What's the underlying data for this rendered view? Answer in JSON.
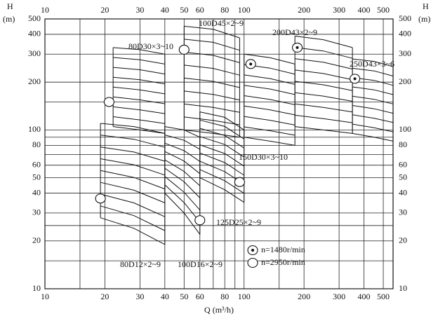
{
  "chart_data": {
    "type": "pump-chart",
    "ylabel": "H",
    "yunit": "(m)",
    "xlabel": "Q (m³/h)",
    "xscale": "log",
    "yscale": "log",
    "xlim": [
      10,
      560
    ],
    "ylim": [
      10,
      500
    ],
    "xticks": [
      10,
      20,
      30,
      40,
      50,
      60,
      80,
      100,
      200,
      300,
      400,
      500
    ],
    "yticks": [
      10,
      20,
      30,
      40,
      50,
      60,
      80,
      100,
      200,
      300,
      400,
      500
    ],
    "xminor": [
      15,
      70,
      90,
      150
    ],
    "yminor": [
      15,
      25,
      70,
      90,
      150
    ],
    "grid": true,
    "series": [
      {
        "name": "n=1480r/min",
        "marker": "dot-circle",
        "families": [
          {
            "label": "200D43×2~9",
            "x": [
              180,
              250,
              350
            ],
            "top": [
              390,
              370,
              330
            ],
            "bottom": [
              105,
              100,
              95
            ],
            "marker": [
              185,
              330
            ]
          },
          {
            "label": "250D43×3~6",
            "x": [
              350,
              450,
              560
            ],
            "top": [
              280,
              270,
              250
            ],
            "bottom": [
              95,
              90,
              85
            ],
            "marker": [
              360,
              210
            ]
          },
          {
            "label": "150D30×3~10",
            "x": [
              100,
              135,
              180
            ],
            "top": [
              300,
              285,
              260
            ],
            "bottom": [
              90,
              85,
              80
            ],
            "marker": [
              108,
              260
            ]
          }
        ]
      },
      {
        "name": "n=2950r/min",
        "marker": "circle",
        "families": [
          {
            "label": "80D30×3~10",
            "x": [
              22,
              30,
              40
            ],
            "top": [
              330,
              320,
              300
            ],
            "bottom": [
              105,
              100,
              95
            ],
            "marker": [
              21,
              150
            ]
          },
          {
            "label": "100D45×2~9",
            "x": [
              50,
              70,
              95
            ],
            "top": [
              450,
              430,
              380
            ],
            "bottom": [
              100,
              95,
              90
            ],
            "marker": [
              50,
              320
            ]
          },
          {
            "label": "80D12×2~9",
            "x": [
              19,
              28,
              40
            ],
            "top": [
              110,
              105,
              95
            ],
            "bottom": [
              28,
              24,
              19
            ],
            "marker": [
              19,
              37
            ]
          },
          {
            "label": "100D16×2~9",
            "x": [
              40,
              50,
              60
            ],
            "top": [
              105,
              100,
              90
            ],
            "bottom": [
              40,
              30,
              22
            ],
            "marker": [
              60,
              27
            ]
          },
          {
            "label": "125D25×2~9",
            "x": [
              60,
              80,
              100
            ],
            "top": [
              130,
              120,
              100
            ],
            "bottom": [
              50,
              42,
              35
            ],
            "marker": [
              95,
              47
            ]
          }
        ]
      }
    ]
  }
}
